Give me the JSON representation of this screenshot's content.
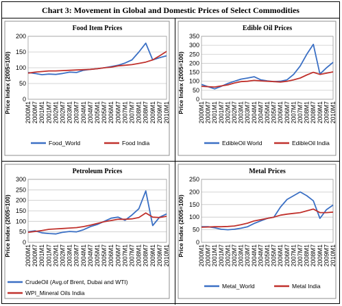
{
  "page_title": "Chart 3: Movement in Global and Domestic Prices of Select Commodities",
  "colors": {
    "world": "#3a6fc4",
    "india": "#c0302b",
    "grid": "#c8c8c8",
    "frame": "#8c8c8c"
  },
  "chart_data": [
    {
      "type": "line",
      "title": "Food Item Prices",
      "ylabel": "Price Index (2005=100)",
      "ylim": [
        0,
        200
      ],
      "yticks": [
        0,
        50,
        100,
        150,
        200
      ],
      "x": [
        "2000M1",
        "2000M7",
        "2001M1",
        "2001M7",
        "2002M1",
        "2002M7",
        "2003M1",
        "2003M7",
        "2004M1",
        "2004M7",
        "2005M1",
        "2005M7",
        "2006M1",
        "2006M7",
        "2007M1",
        "2007M7",
        "2008M1",
        "2008M7",
        "2009M1",
        "2009M7",
        "2010M1"
      ],
      "legend_layout": "one-row",
      "series": [
        {
          "name": "Food_World",
          "color": "world",
          "values": [
            85,
            82,
            78,
            80,
            79,
            82,
            86,
            85,
            92,
            95,
            97,
            100,
            104,
            108,
            115,
            125,
            150,
            178,
            125,
            132,
            138
          ]
        },
        {
          "name": "Food India",
          "color": "india",
          "values": [
            83,
            86,
            88,
            90,
            90,
            91,
            92,
            93,
            94,
            95,
            97,
            100,
            102,
            106,
            108,
            110,
            114,
            118,
            125,
            138,
            152
          ]
        }
      ]
    },
    {
      "type": "line",
      "title": "Edible Oil Prices",
      "ylabel": "Price Index (2005=100)",
      "ylim": [
        0,
        350
      ],
      "yticks": [
        0,
        50,
        100,
        150,
        200,
        250,
        300,
        350
      ],
      "x": [
        "2000M1",
        "2000M7",
        "2001M1",
        "2001M7",
        "2002M1",
        "2002M7",
        "2003M1",
        "2003M7",
        "2004M1",
        "2004M7",
        "2005M1",
        "2005M7",
        "2006M1",
        "2006M7",
        "2007M1",
        "2007M7",
        "2008M1",
        "2008M7",
        "2009M1",
        "2009M7",
        "2010M1"
      ],
      "legend_layout": "one-row",
      "series": [
        {
          "name": "EdibleOil World",
          "color": "world",
          "values": [
            82,
            70,
            58,
            72,
            88,
            100,
            112,
            118,
            125,
            108,
            102,
            98,
            100,
            108,
            138,
            185,
            250,
            305,
            140,
            175,
            205
          ]
        },
        {
          "name": "EdibleOil India",
          "color": "india",
          "values": [
            72,
            70,
            68,
            74,
            80,
            90,
            98,
            100,
            105,
            102,
            100,
            98,
            96,
            100,
            108,
            118,
            135,
            150,
            138,
            145,
            152
          ]
        }
      ]
    },
    {
      "type": "line",
      "title": "Petroleum Prices",
      "ylabel": "Price Index (2005=100)",
      "ylim": [
        0,
        300
      ],
      "yticks": [
        0,
        50,
        100,
        150,
        200,
        250,
        300
      ],
      "x": [
        "2000M1",
        "2000M7",
        "2001M1",
        "2001M7",
        "2002M1",
        "2002M7",
        "2003M1",
        "2003M7",
        "2004M1",
        "2004M7",
        "2005M1",
        "2005M7",
        "2006M1",
        "2006M7",
        "2007M1",
        "2007M7",
        "2008M1",
        "2008M7",
        "2009M1",
        "2009M7",
        "2010M1"
      ],
      "legend_layout": "two-rows",
      "series": [
        {
          "name": "CrudeOil (Avg.of Brent, Dubai and WTI)",
          "color": "world",
          "values": [
            50,
            55,
            45,
            42,
            40,
            48,
            52,
            50,
            60,
            75,
            85,
            100,
            115,
            120,
            105,
            130,
            160,
            245,
            80,
            120,
            135
          ]
        },
        {
          "name": "WPI_Mineral Oils India",
          "color": "india",
          "values": [
            48,
            52,
            56,
            62,
            64,
            66,
            68,
            70,
            75,
            82,
            90,
            98,
            104,
            110,
            110,
            112,
            118,
            140,
            120,
            118,
            124
          ]
        }
      ]
    },
    {
      "type": "line",
      "title": "Metal Prices",
      "ylabel": "Price Index (2005=100)",
      "ylim": [
        0,
        250
      ],
      "yticks": [
        0,
        50,
        100,
        150,
        200,
        250
      ],
      "x": [
        "2000M1",
        "2000M7",
        "2001M1",
        "2001M7",
        "2002M1",
        "2002M7",
        "2003M1",
        "2003M7",
        "2004M1",
        "2004M7",
        "2005M1",
        "2005M7",
        "2006M1",
        "2006M7",
        "2007M1",
        "2007M7",
        "2008M1",
        "2008M7",
        "2009M1",
        "2009M7",
        "2010M1"
      ],
      "legend_layout": "one-row",
      "series": [
        {
          "name": "Metal_World",
          "color": "world",
          "values": [
            62,
            62,
            58,
            52,
            50,
            52,
            56,
            62,
            75,
            85,
            95,
            100,
            140,
            170,
            185,
            200,
            185,
            165,
            95,
            130,
            148
          ]
        },
        {
          "name": "Metal India",
          "color": "india",
          "values": [
            60,
            61,
            62,
            62,
            63,
            65,
            70,
            76,
            85,
            90,
            95,
            100,
            108,
            112,
            115,
            118,
            125,
            132,
            118,
            118,
            120
          ]
        }
      ]
    }
  ]
}
